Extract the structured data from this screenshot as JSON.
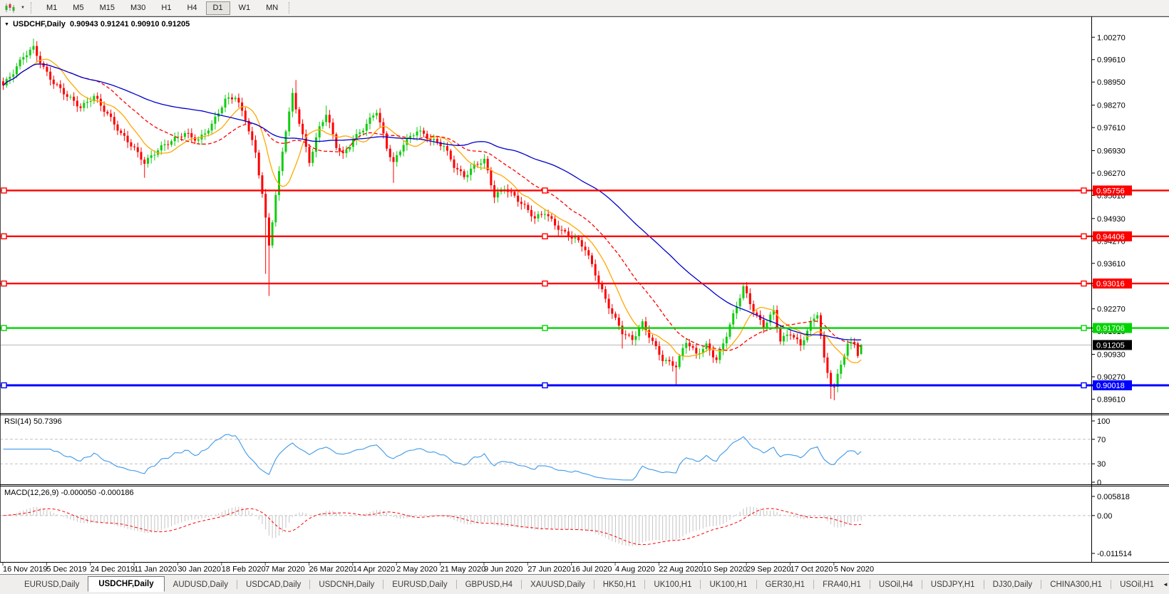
{
  "toolbar": {
    "chart_icon": "candlestick-chart-icon",
    "caret_icon": "chevron-down-icon",
    "timeframes": [
      "M1",
      "M5",
      "M15",
      "M30",
      "H1",
      "H4",
      "D1",
      "W1",
      "MN"
    ],
    "active_timeframe": "D1"
  },
  "chart_data": {
    "type": "candlestick",
    "title": {
      "symbol": "USDCHF,Daily",
      "ohlc": "0.90943 0.91241 0.90910 0.91205"
    },
    "colors": {
      "bull": "#10cd10",
      "bear": "#fe0000",
      "ma_fast": "#ffa800",
      "ma_mid": "#ff0000",
      "ma_slow": "#0000cc",
      "current_line": "#b4b4b4",
      "histogram": "#c4c4c4",
      "rsi_line": "#3f99e8",
      "level_dash": "#c0c0c0"
    },
    "y_axis": {
      "ticks": [
        "1.00270",
        "0.99610",
        "0.98950",
        "0.98270",
        "0.97610",
        "0.96930",
        "0.96270",
        "0.95610",
        "0.94930",
        "0.94270",
        "0.93610",
        "0.92950",
        "0.92270",
        "0.91610",
        "0.90930",
        "0.90270",
        "0.89610"
      ],
      "tick_values": [
        1.0027,
        0.9961,
        0.9895,
        0.9827,
        0.9761,
        0.9693,
        0.9627,
        0.9561,
        0.9493,
        0.9427,
        0.9361,
        0.9295,
        0.9227,
        0.9161,
        0.9093,
        0.9027,
        0.8961
      ],
      "current": {
        "label": "0.91205",
        "value": 0.91205
      }
    },
    "h_lines": [
      {
        "label": "0.95756",
        "value": 0.95756,
        "color": "#ff0000"
      },
      {
        "label": "0.94406",
        "value": 0.94406,
        "color": "#ff0000"
      },
      {
        "label": "0.93016",
        "value": 0.93016,
        "color": "#ff0000"
      },
      {
        "label": "0.91706",
        "value": 0.91706,
        "color": "#00d400"
      },
      {
        "label": "0.90018",
        "value": 0.90018,
        "color": "#0000ff"
      }
    ],
    "x_axis": {
      "dates": [
        "16 Nov 2019",
        "5 Dec 2019",
        "24 Dec 2019",
        "11 Jan 2020",
        "30 Jan 2020",
        "18 Feb 2020",
        "7 Mar 2020",
        "26 Mar 2020",
        "14 Apr 2020",
        "2 May 2020",
        "21 May 2020",
        "9 Jun 2020",
        "27 Jun 2020",
        "16 Jul 2020",
        "4 Aug 2020",
        "22 Aug 2020",
        "10 Sep 2020",
        "29 Sep 2020",
        "17 Oct 2020",
        "5 Nov 2020"
      ]
    },
    "price": {
      "bars": 256,
      "anchors": [
        [
          0,
          0.9885
        ],
        [
          3,
          0.992
        ],
        [
          6,
          0.9968
        ],
        [
          9,
          0.9998
        ],
        [
          12,
          0.994
        ],
        [
          15,
          0.9893
        ],
        [
          19,
          0.985
        ],
        [
          23,
          0.982
        ],
        [
          27,
          0.9858
        ],
        [
          31,
          0.98
        ],
        [
          35,
          0.9738
        ],
        [
          39,
          0.97
        ],
        [
          42,
          0.9662
        ],
        [
          46,
          0.9696
        ],
        [
          50,
          0.9718
        ],
        [
          54,
          0.9745
        ],
        [
          58,
          0.9728
        ],
        [
          62,
          0.9768
        ],
        [
          66,
          0.9838
        ],
        [
          69,
          0.9852
        ],
        [
          72,
          0.979
        ],
        [
          75,
          0.9688
        ],
        [
          77,
          0.9566
        ],
        [
          79,
          0.941
        ],
        [
          81,
          0.9558
        ],
        [
          84,
          0.9755
        ],
        [
          86,
          0.986
        ],
        [
          89,
          0.9742
        ],
        [
          91,
          0.9662
        ],
        [
          94,
          0.9758
        ],
        [
          96,
          0.9798
        ],
        [
          99,
          0.9705
        ],
        [
          101,
          0.9682
        ],
        [
          104,
          0.973
        ],
        [
          107,
          0.9758
        ],
        [
          111,
          0.9806
        ],
        [
          114,
          0.97
        ],
        [
          116,
          0.9658
        ],
        [
          119,
          0.9718
        ],
        [
          123,
          0.9752
        ],
        [
          127,
          0.9722
        ],
        [
          131,
          0.9708
        ],
        [
          134,
          0.9652
        ],
        [
          137,
          0.9618
        ],
        [
          140,
          0.9645
        ],
        [
          143,
          0.9662
        ],
        [
          146,
          0.956
        ],
        [
          149,
          0.9588
        ],
        [
          152,
          0.956
        ],
        [
          155,
          0.9525
        ],
        [
          158,
          0.949
        ],
        [
          161,
          0.9512
        ],
        [
          164,
          0.9478
        ],
        [
          167,
          0.9452
        ],
        [
          170,
          0.9432
        ],
        [
          173,
          0.94
        ],
        [
          176,
          0.933
        ],
        [
          179,
          0.9258
        ],
        [
          182,
          0.9198
        ],
        [
          184,
          0.9158
        ],
        [
          187,
          0.9132
        ],
        [
          190,
          0.9182
        ],
        [
          193,
          0.9132
        ],
        [
          196,
          0.9082
        ],
        [
          200,
          0.9058
        ],
        [
          203,
          0.9128
        ],
        [
          206,
          0.9092
        ],
        [
          209,
          0.9122
        ],
        [
          212,
          0.908
        ],
        [
          215,
          0.915
        ],
        [
          218,
          0.9232
        ],
        [
          220,
          0.9288
        ],
        [
          223,
          0.9222
        ],
        [
          226,
          0.918
        ],
        [
          229,
          0.9222
        ],
        [
          231,
          0.9132
        ],
        [
          234,
          0.9152
        ],
        [
          237,
          0.9118
        ],
        [
          240,
          0.9188
        ],
        [
          242,
          0.9218
        ],
        [
          244,
          0.908
        ],
        [
          246,
          0.9002
        ],
        [
          247,
          0.8992
        ],
        [
          249,
          0.9062
        ],
        [
          251,
          0.9118
        ],
        [
          253,
          0.913
        ],
        [
          254,
          0.9094
        ],
        [
          255,
          0.91205
        ]
      ],
      "wicks": [
        {
          "i": 9,
          "high": 1.0023
        },
        {
          "i": 42,
          "low": 0.9613
        },
        {
          "i": 78,
          "low": 0.933
        },
        {
          "i": 79,
          "low": 0.9265
        },
        {
          "i": 87,
          "high": 0.9901
        },
        {
          "i": 96,
          "high": 0.9826
        },
        {
          "i": 116,
          "low": 0.9598
        },
        {
          "i": 137,
          "low": 0.9608
        },
        {
          "i": 184,
          "low": 0.911
        },
        {
          "i": 200,
          "low": 0.9002
        },
        {
          "i": 220,
          "high": 0.9296
        },
        {
          "i": 246,
          "low": 0.8962
        },
        {
          "i": 247,
          "low": 0.8958
        }
      ],
      "last_bar": {
        "open": 0.90943,
        "high": 0.91241,
        "low": 0.9091,
        "close": 0.91205
      }
    },
    "moving_averages": [
      {
        "period": 10,
        "color_key": "ma_fast",
        "style": "solid"
      },
      {
        "period": 25,
        "color_key": "ma_mid",
        "style": "dashed"
      },
      {
        "period": 60,
        "color_key": "ma_slow",
        "style": "solid"
      }
    ],
    "rsi": {
      "label": "RSI(14) 50.7396",
      "period": 14,
      "ticks": [
        "100",
        "70",
        "30",
        "0"
      ],
      "tick_values": [
        100,
        70,
        30,
        0
      ],
      "levels": [
        70,
        30
      ]
    },
    "macd": {
      "label": "MACD(12,26,9) -0.000050 -0.000186",
      "fast": 12,
      "slow": 26,
      "signal": 9,
      "ticks": [
        "0.005818",
        "0.00",
        "-0.011514"
      ],
      "tick_values": [
        0.005818,
        0,
        -0.011514
      ]
    }
  },
  "tabs": {
    "items": [
      "EURUSD,Daily",
      "USDCHF,Daily",
      "AUDUSD,Daily",
      "USDCAD,Daily",
      "USDCNH,Daily",
      "EURUSD,Daily",
      "GBPUSD,H4",
      "XAUUSD,Daily",
      "HK50,H1",
      "UK100,H1",
      "UK100,H1",
      "GER30,H1",
      "FRA40,H1",
      "USOil,H4",
      "USDJPY,H1",
      "DJ30,Daily",
      "CHINA300,H1",
      "USOil,H1"
    ],
    "active_index": 1,
    "scroll_left_icon": "◄",
    "scroll_right_icon": "►"
  }
}
